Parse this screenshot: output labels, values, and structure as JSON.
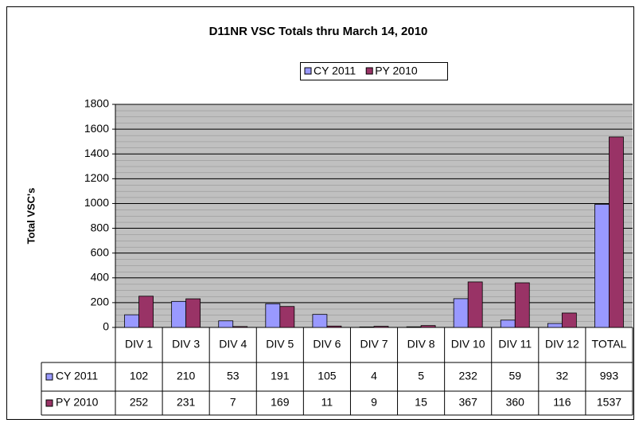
{
  "chart_data": {
    "type": "bar",
    "title": "D11NR VSC Totals  thru March 14, 2010",
    "ylabel": "Total VSC's",
    "categories": [
      "DIV 1",
      "DIV 3",
      "DIV 4",
      "DIV 5",
      "DIV 6",
      "DIV 7",
      "DIV 8",
      "DIV 10",
      "DIV 11",
      "DIV 12",
      "TOTAL"
    ],
    "series": [
      {
        "name": "CY 2011",
        "color": "#9999ff",
        "values": [
          102,
          210,
          53,
          191,
          105,
          4,
          5,
          232,
          59,
          32,
          993
        ]
      },
      {
        "name": "PY 2010",
        "color": "#993366",
        "values": [
          252,
          231,
          7,
          169,
          11,
          9,
          15,
          367,
          360,
          116,
          1537
        ]
      }
    ],
    "ylim": [
      0,
      1800
    ],
    "yticks": [
      0,
      200,
      400,
      600,
      800,
      1000,
      1200,
      1400,
      1600,
      1800
    ],
    "grid": true
  }
}
